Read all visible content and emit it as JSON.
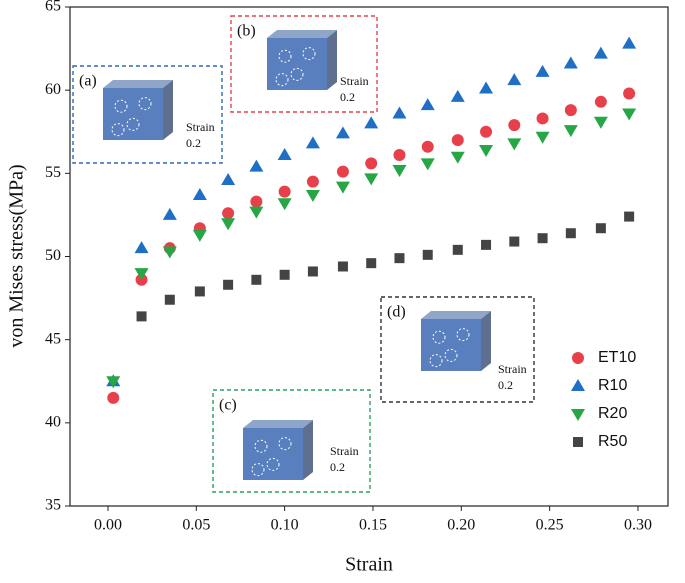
{
  "chart_data": {
    "type": "scatter",
    "x_label": "Strain",
    "y_label": "von Mises stress(MPa)",
    "x": [
      0.003,
      0.019,
      0.035,
      0.052,
      0.068,
      0.084,
      0.1,
      0.116,
      0.133,
      0.149,
      0.165,
      0.181,
      0.198,
      0.214,
      0.23,
      0.246,
      0.262,
      0.279,
      0.295
    ],
    "series": [
      {
        "name": "ET10",
        "color": "#e8404a",
        "marker": "circle",
        "values": [
          41.5,
          48.6,
          50.5,
          51.7,
          52.6,
          53.3,
          53.9,
          54.5,
          55.1,
          55.6,
          56.1,
          56.6,
          57.0,
          57.5,
          57.9,
          58.3,
          58.8,
          59.3,
          59.8
        ]
      },
      {
        "name": "R10",
        "color": "#1f6fc5",
        "marker": "triangle-up",
        "values": [
          42.5,
          50.5,
          52.5,
          53.7,
          54.6,
          55.4,
          56.1,
          56.8,
          57.4,
          58.0,
          58.6,
          59.1,
          59.6,
          60.1,
          60.6,
          61.1,
          61.6,
          62.2,
          62.8
        ]
      },
      {
        "name": "R20",
        "color": "#27a646",
        "marker": "triangle-down",
        "values": [
          42.5,
          49.0,
          50.3,
          51.3,
          52.0,
          52.7,
          53.2,
          53.7,
          54.2,
          54.7,
          55.2,
          55.6,
          56.0,
          56.4,
          56.8,
          57.2,
          57.6,
          58.1,
          58.6
        ]
      },
      {
        "name": "R50",
        "color": "#444444",
        "marker": "square",
        "values": [
          null,
          46.4,
          47.4,
          47.9,
          48.3,
          48.6,
          48.9,
          49.1,
          49.4,
          49.6,
          49.9,
          50.1,
          50.4,
          50.7,
          50.9,
          51.1,
          51.4,
          51.7,
          52.4
        ]
      }
    ],
    "xlim": [
      -0.0215,
      0.317
    ],
    "ylim": [
      35,
      65
    ],
    "xticks": [
      {
        "value": 0,
        "label": "0.00"
      },
      {
        "value": 0.05,
        "label": "0.05"
      },
      {
        "value": 0.1,
        "label": "0.10"
      },
      {
        "value": 0.15,
        "label": "0.15"
      },
      {
        "value": 0.2,
        "label": "0.20"
      },
      {
        "value": 0.25,
        "label": "0.25"
      },
      {
        "value": 0.3,
        "label": "0.30"
      }
    ],
    "yticks": [
      35,
      40,
      45,
      50,
      55,
      60,
      65
    ],
    "legend": "lower-right",
    "insets": [
      {
        "label": "(a)",
        "color": "#2b6cb8",
        "text": [
          "Strain",
          "0.2"
        ]
      },
      {
        "label": "(b)",
        "color": "#e0474c",
        "text": [
          "Strain",
          "0.2"
        ]
      },
      {
        "label": "(c)",
        "color": "#2aa060",
        "text": [
          "Strain",
          "0.2"
        ]
      },
      {
        "label": "(d)",
        "color": "#333333",
        "text": [
          "Strain",
          "0.2"
        ]
      }
    ]
  }
}
